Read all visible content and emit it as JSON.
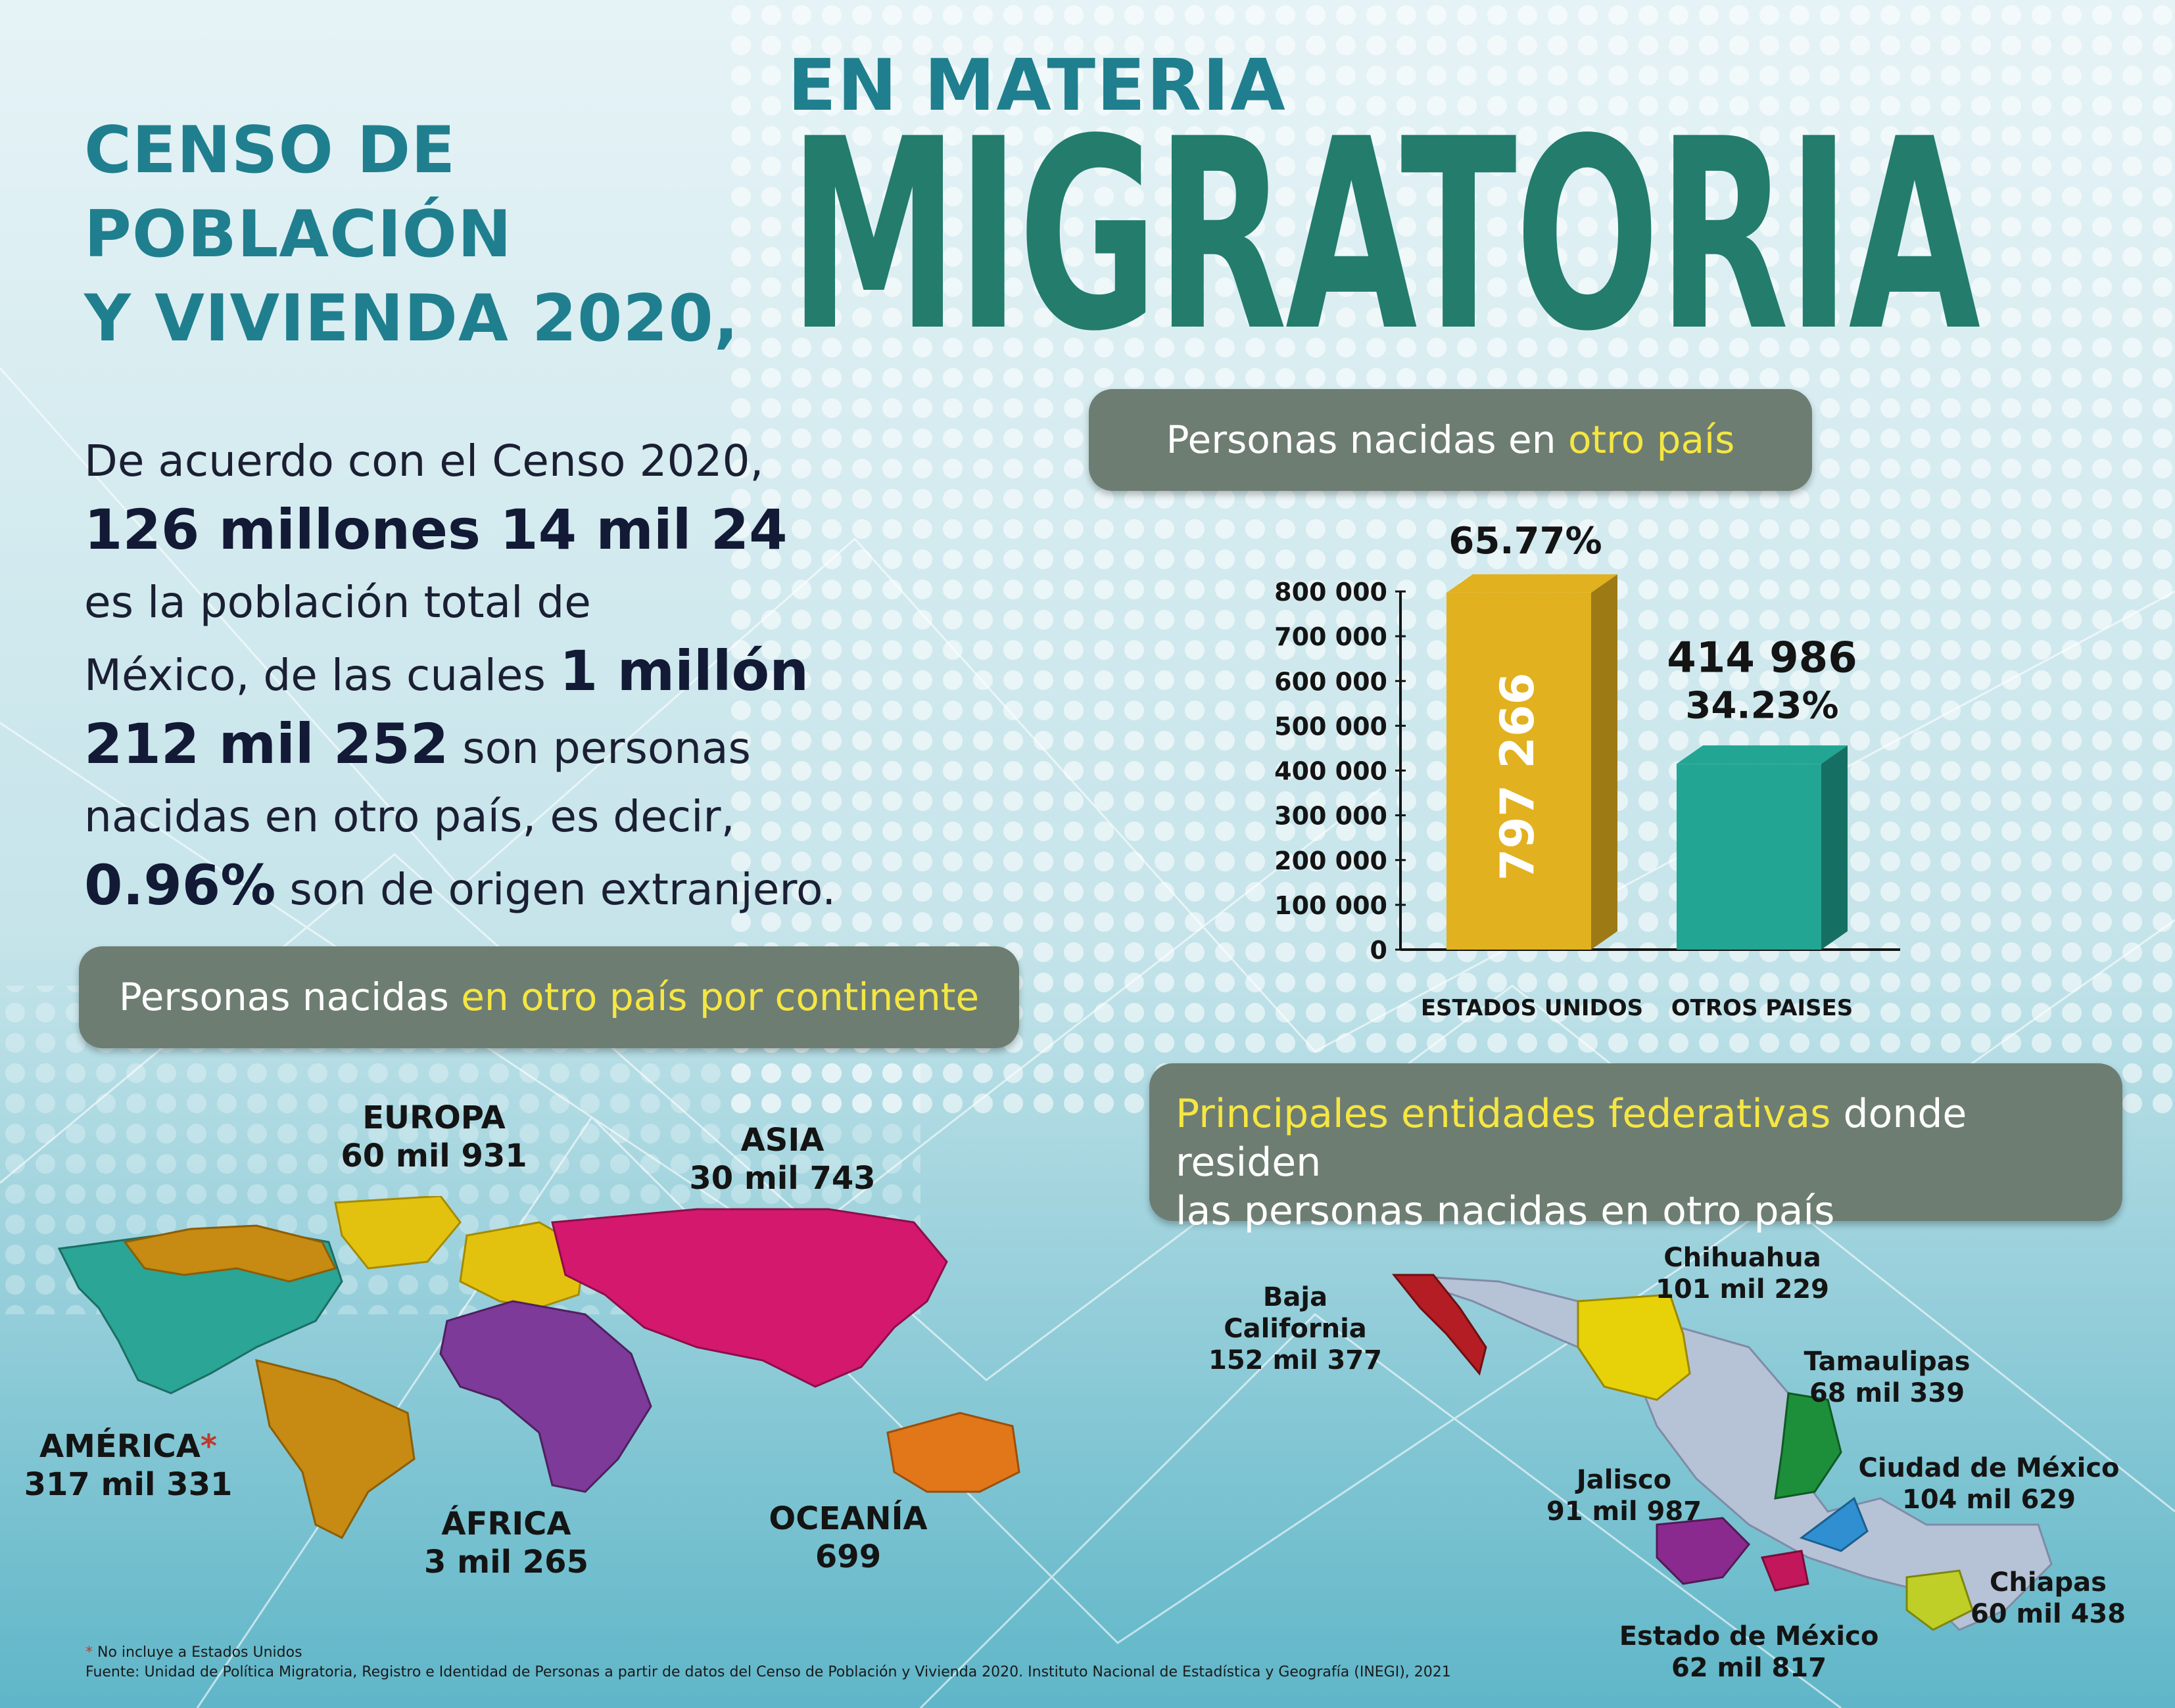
{
  "header": {
    "title_lines": [
      "CENSO DE",
      "POBLACIÓN",
      "Y VIVIENDA 2020,"
    ],
    "subtitle_small": "EN MATERIA",
    "subtitle_big": "MIGRATORIA"
  },
  "intro": {
    "p1": "De acuerdo  con el Censo 2020,",
    "b1": "126 millones 14 mil 24",
    "p2": "es la población total de",
    "p3": "México, de las cuales",
    "b2": "1 millón",
    "b3": "212 mil 252",
    "p4": "son personas",
    "p5": "nacidas en otro país, es decir,",
    "b4": "0.96%",
    "p6": "son de origen extranjero."
  },
  "pills": {
    "born_other": {
      "text": "Personas nacidas en ",
      "highlight": "otro país"
    },
    "continent": {
      "text": "Personas nacidas ",
      "highlight": "en otro país por continente"
    },
    "states": {
      "highlight": "Principales entidades federativas",
      "text": " donde residen",
      "line2": "las personas nacidas en otro país"
    }
  },
  "chart_data": {
    "type": "bar",
    "categories": [
      "ESTADOS UNIDOS",
      "OTROS PAISES"
    ],
    "values": [
      797266,
      414986
    ],
    "value_labels": [
      "797 266",
      "414 986"
    ],
    "percent_labels": [
      "65.77%",
      "34.23%"
    ],
    "y_ticks": [
      "0",
      "100 000",
      "200 000",
      "300 000",
      "400 000",
      "500 000",
      "600 000",
      "700 000",
      "800 000"
    ],
    "ylim": [
      0,
      800000
    ],
    "colors": [
      "#e1b11f",
      "#23a593"
    ],
    "title": "",
    "xlabel": "",
    "ylabel": ""
  },
  "continents": [
    {
      "name": "EUROPA",
      "value": "60 mil 931",
      "color": "#e3c20f"
    },
    {
      "name": "ASIA",
      "value": "30 mil 743",
      "color": "#d4186e"
    },
    {
      "name": "AMÉRICA",
      "value": "317 mil 331",
      "color": "#c78a12"
    },
    {
      "name": "ÁFRICA",
      "value": "3 mil 265",
      "color": "#7d3a98"
    },
    {
      "name": "OCEANÍA",
      "value": "699",
      "color": "#e17718"
    }
  ],
  "america_mark": "*",
  "states": [
    {
      "name": "Baja California",
      "value": "152 mil 377",
      "color": "#b31d23"
    },
    {
      "name": "Chihuahua",
      "value": "101 mil 229",
      "color": "#e7d20a"
    },
    {
      "name": "Tamaulipas",
      "value": "68 mil 339",
      "color": "#1d8f3a"
    },
    {
      "name": "Jalisco",
      "value": "91 mil 987",
      "color": "#8b2a8e"
    },
    {
      "name": "Ciudad de México",
      "value": "104 mil 629",
      "color": "#2f8fd1"
    },
    {
      "name": "Chiapas",
      "value": "60 mil 438",
      "color": "#c0cf27"
    },
    {
      "name": "Estado de México",
      "value": "62 mil 817",
      "color": "#c2185b"
    }
  ],
  "footer": {
    "note": "No incluye a Estados Unidos",
    "source": "Fuente: Unidad de Política Migratoria, Registro e Identidad de Personas a partir de datos del Censo de Población y Vivienda 2020. Instituto Nacional de Estadística y Geografía (INEGI), 2021"
  }
}
